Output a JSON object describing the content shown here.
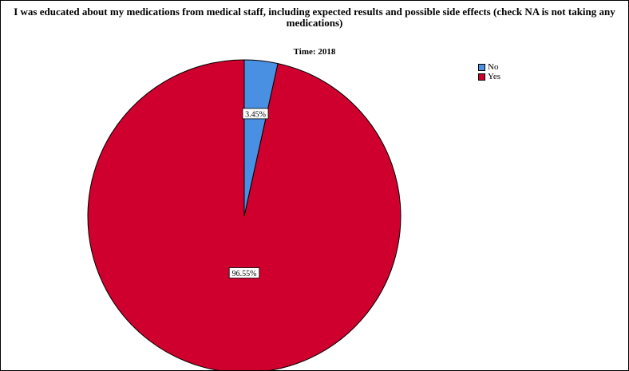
{
  "chart_data": {
    "type": "pie",
    "title": "I was educated about my medications from medical staff, including expected results and possible side effects (check NA is not taking any medications)",
    "subtitle": "Time: 2018",
    "categories": [
      "No",
      "Yes"
    ],
    "values": [
      3.45,
      96.55
    ],
    "data_labels": [
      "3.45%",
      "96.55%"
    ],
    "colors": [
      "#4a90e2",
      "#d0002e"
    ],
    "legend_position": "top-right"
  }
}
